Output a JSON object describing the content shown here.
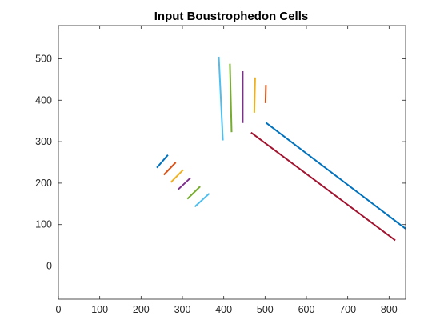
{
  "chart_data": {
    "type": "line",
    "title": "Input Boustrophedon Cells",
    "xlabel": "",
    "ylabel": "",
    "xlim": [
      0,
      840
    ],
    "ylim": [
      -80,
      580
    ],
    "x_ticks": [
      0,
      100,
      200,
      300,
      400,
      500,
      600,
      700,
      800
    ],
    "y_ticks": [
      0,
      100,
      200,
      300,
      400,
      500
    ],
    "grid": false,
    "legend": "none",
    "series": [
      {
        "color": "#0072BD",
        "points": [
          [
            238,
            237
          ],
          [
            265,
            268
          ]
        ]
      },
      {
        "color": "#D95319",
        "points": [
          [
            255,
            220
          ],
          [
            284,
            250
          ]
        ]
      },
      {
        "color": "#EDB120",
        "points": [
          [
            272,
            202
          ],
          [
            302,
            232
          ]
        ]
      },
      {
        "color": "#7E2F8E",
        "points": [
          [
            290,
            185
          ],
          [
            320,
            213
          ]
        ]
      },
      {
        "color": "#77AC30",
        "points": [
          [
            312,
            162
          ],
          [
            343,
            192
          ]
        ]
      },
      {
        "color": "#4DBEEE",
        "points": [
          [
            330,
            143
          ],
          [
            365,
            175
          ]
        ]
      },
      {
        "color": "#4DBEEE",
        "points": [
          [
            388,
            505
          ],
          [
            398,
            303
          ]
        ]
      },
      {
        "color": "#77AC30",
        "points": [
          [
            415,
            488
          ],
          [
            419,
            323
          ]
        ]
      },
      {
        "color": "#7E2F8E",
        "points": [
          [
            446,
            470
          ],
          [
            446,
            345
          ]
        ]
      },
      {
        "color": "#EDB120",
        "points": [
          [
            476,
            455
          ],
          [
            474,
            370
          ]
        ]
      },
      {
        "color": "#D95319",
        "points": [
          [
            502,
            437
          ],
          [
            501,
            393
          ]
        ]
      },
      {
        "color": "#0072BD",
        "points": [
          [
            502,
            346
          ],
          [
            840,
            90
          ]
        ]
      },
      {
        "color": "#A2142F",
        "points": [
          [
            466,
            322
          ],
          [
            815,
            62
          ]
        ]
      }
    ]
  }
}
